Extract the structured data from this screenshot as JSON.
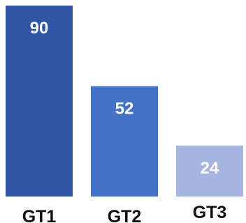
{
  "chart_data": {
    "type": "bar",
    "categories": [
      "GT1",
      "GT2",
      "GT3"
    ],
    "values": [
      90,
      52,
      24
    ],
    "value_labels": [
      "90",
      "52",
      "24"
    ],
    "colors": [
      "#2f55a4",
      "#4472c4",
      "#a5b5e0"
    ],
    "value_label_color": "#ffffff",
    "category_label_color": "#111111",
    "title": "",
    "xlabel": "",
    "ylabel": "",
    "ylim": [
      0,
      90
    ],
    "grid": false,
    "legend": "none"
  }
}
